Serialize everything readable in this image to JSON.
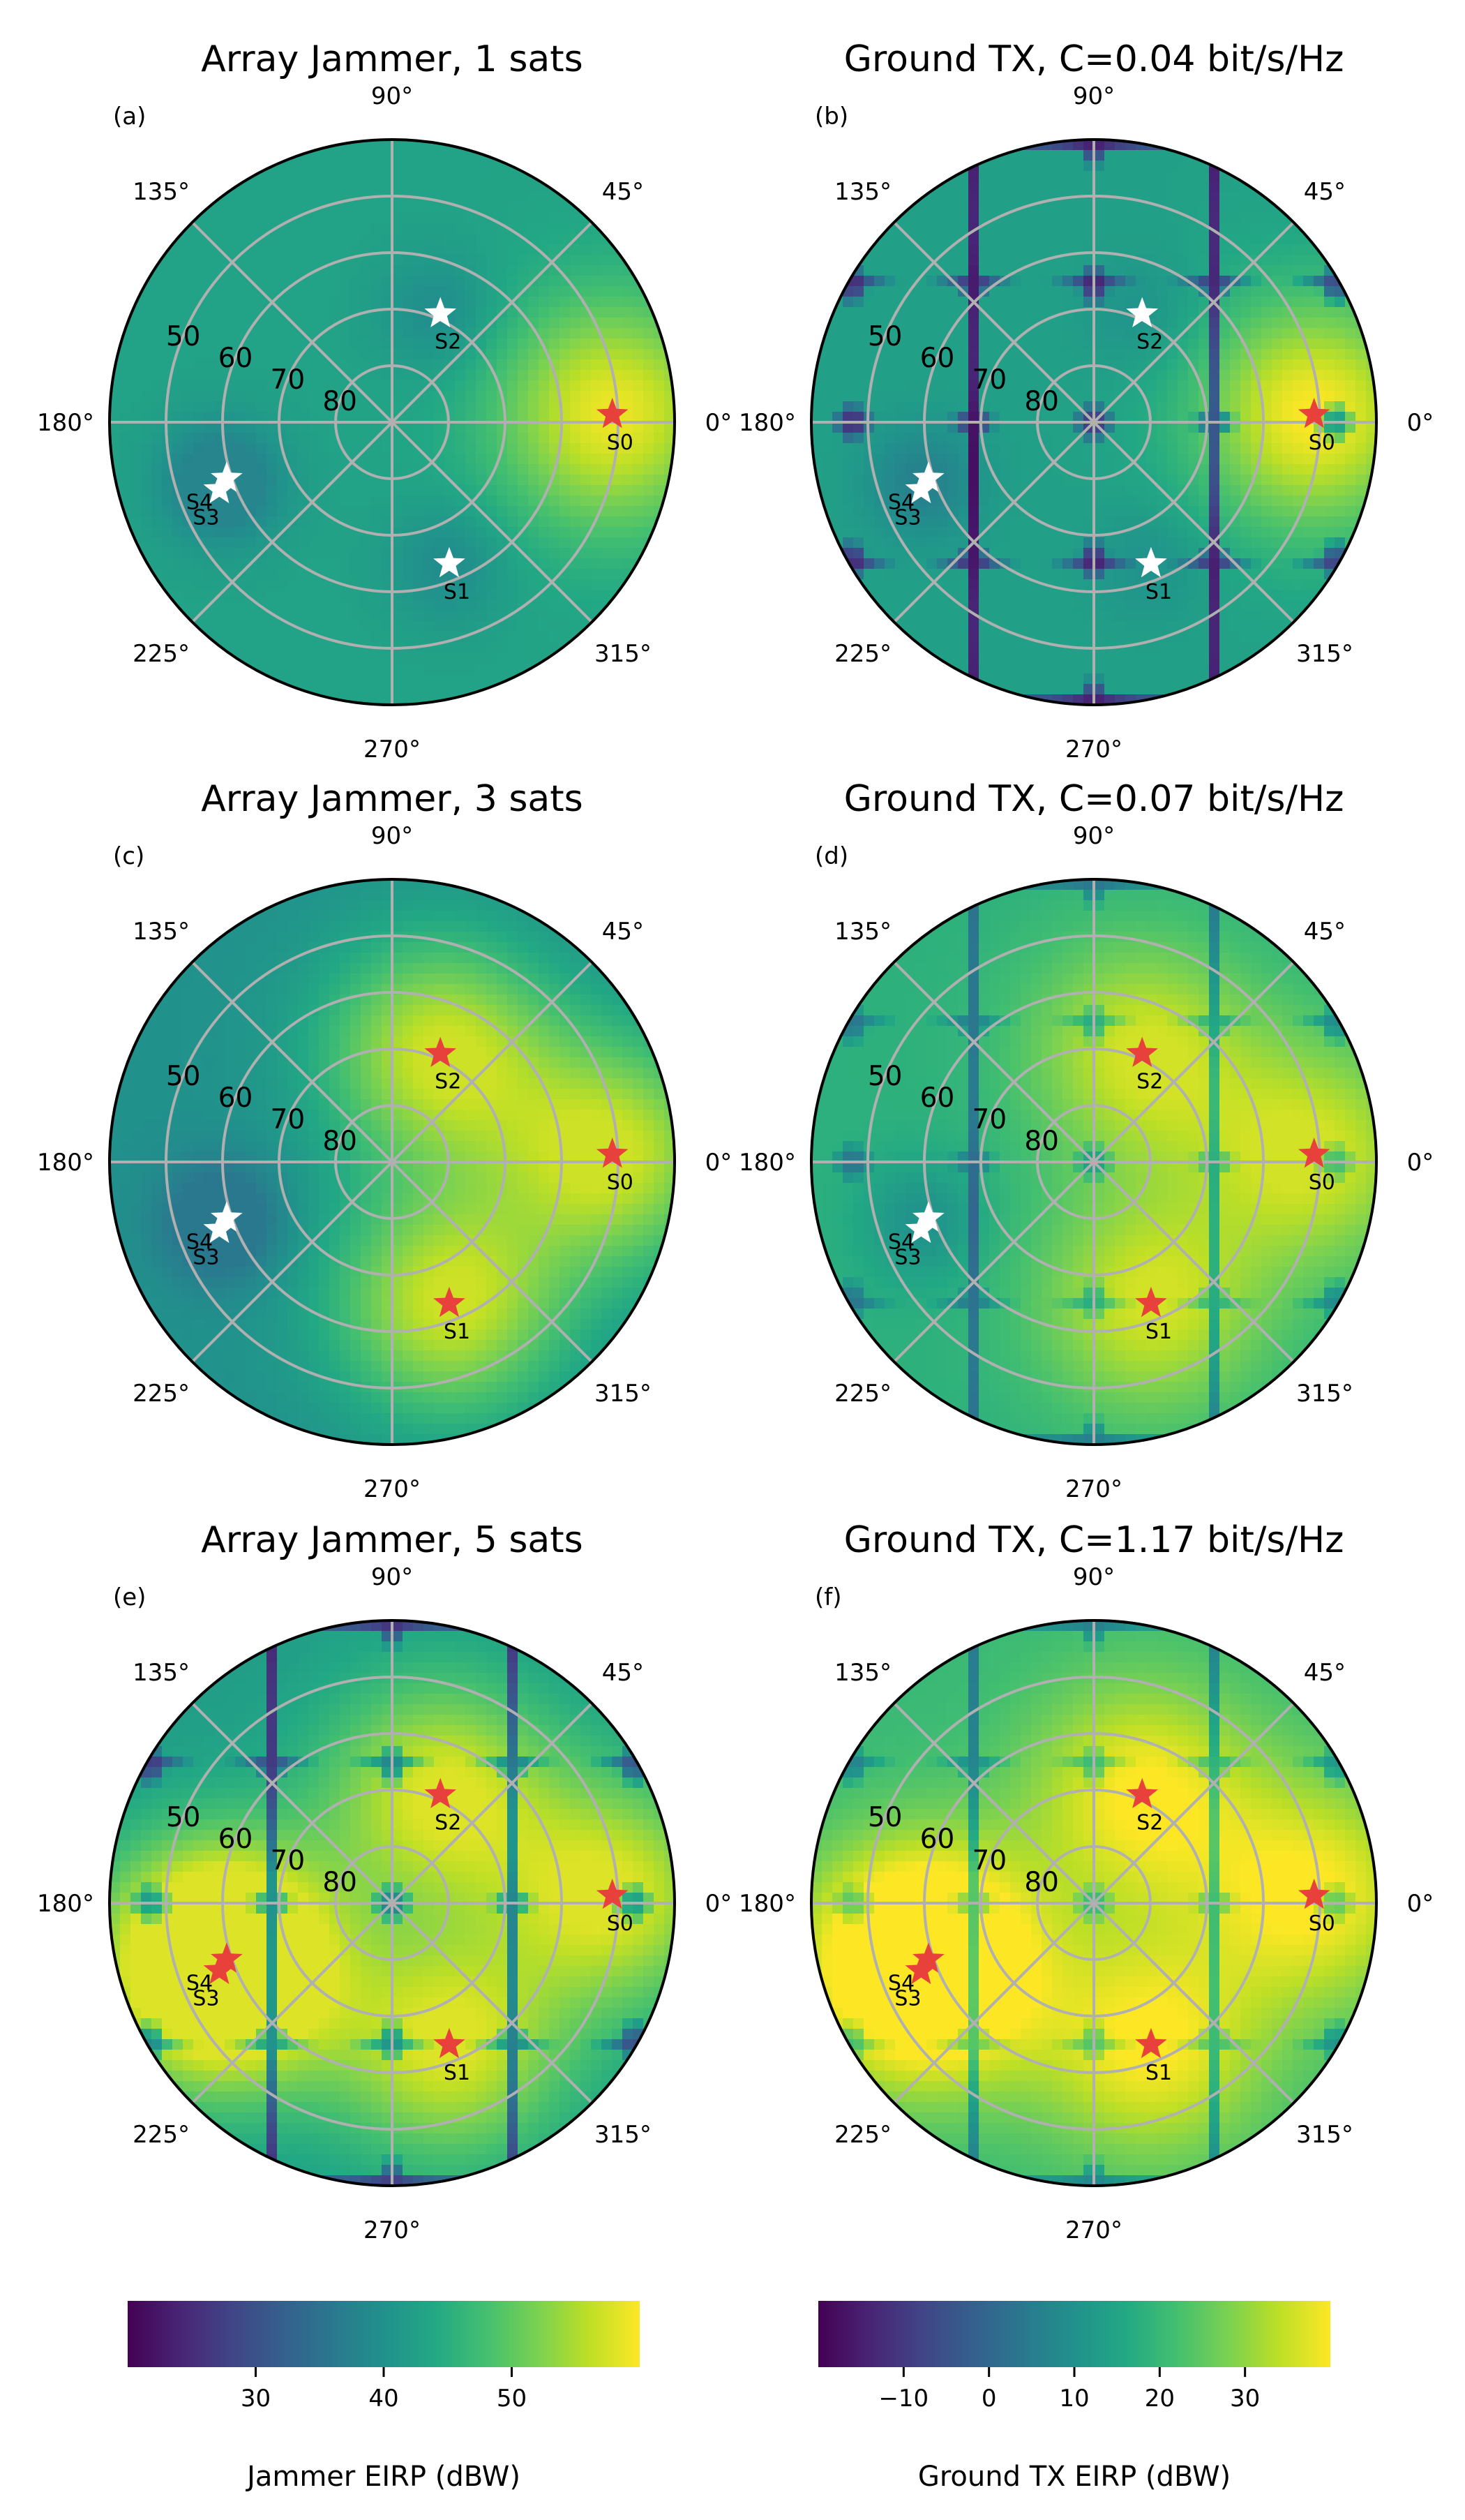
{
  "chart_data": [
    {
      "type": "polar-heatmap",
      "panel_label": "(a)",
      "title": "Array Jammer, 1 sats",
      "colorbar": "jammer",
      "angle_ticks": [
        "0°",
        "45°",
        "90°",
        "135°",
        "180°",
        "225°",
        "270°",
        "315°"
      ],
      "elevation_ticks": [
        "50",
        "60",
        "70",
        "80"
      ],
      "elevation_range": [
        40,
        90
      ],
      "satellites": [
        {
          "name": "S0",
          "azimuth_deg": 2,
          "elevation_deg": 51,
          "targeted": true
        },
        {
          "name": "S1",
          "azimuth_deg": 292,
          "elevation_deg": 63,
          "targeted": false
        },
        {
          "name": "S2",
          "azimuth_deg": 66,
          "elevation_deg": 69,
          "targeted": false
        },
        {
          "name": "S3",
          "azimuth_deg": 200,
          "elevation_deg": 58,
          "targeted": false
        },
        {
          "name": "S4",
          "azimuth_deg": 199,
          "elevation_deg": 58,
          "targeted": false
        }
      ],
      "field": {
        "base_dbw": 43,
        "min_dbw": 38,
        "max_dbw": 59,
        "nulls": false
      }
    },
    {
      "type": "polar-heatmap",
      "panel_label": "(b)",
      "title": "Ground TX, C=0.04 bit/s/Hz",
      "colorbar": "ground",
      "angle_ticks": [
        "0°",
        "45°",
        "90°",
        "135°",
        "180°",
        "225°",
        "270°",
        "315°"
      ],
      "elevation_ticks": [
        "50",
        "60",
        "70",
        "80"
      ],
      "elevation_range": [
        40,
        90
      ],
      "satellites": [
        {
          "name": "S0",
          "azimuth_deg": 2,
          "elevation_deg": 51,
          "targeted": true
        },
        {
          "name": "S1",
          "azimuth_deg": 292,
          "elevation_deg": 63,
          "targeted": false
        },
        {
          "name": "S2",
          "azimuth_deg": 66,
          "elevation_deg": 69,
          "targeted": false
        },
        {
          "name": "S3",
          "azimuth_deg": 200,
          "elevation_deg": 58,
          "targeted": false
        },
        {
          "name": "S4",
          "azimuth_deg": 199,
          "elevation_deg": 58,
          "targeted": false
        }
      ],
      "field": {
        "base_dbw": 14,
        "min_dbw": -19,
        "max_dbw": 40,
        "nulls": true
      }
    },
    {
      "type": "polar-heatmap",
      "panel_label": "(c)",
      "title": "Array Jammer, 3 sats",
      "colorbar": "jammer",
      "angle_ticks": [
        "0°",
        "45°",
        "90°",
        "135°",
        "180°",
        "225°",
        "270°",
        "315°"
      ],
      "elevation_ticks": [
        "50",
        "60",
        "70",
        "80"
      ],
      "elevation_range": [
        40,
        90
      ],
      "satellites": [
        {
          "name": "S0",
          "azimuth_deg": 2,
          "elevation_deg": 51,
          "targeted": true
        },
        {
          "name": "S1",
          "azimuth_deg": 292,
          "elevation_deg": 63,
          "targeted": true
        },
        {
          "name": "S2",
          "azimuth_deg": 66,
          "elevation_deg": 69,
          "targeted": true
        },
        {
          "name": "S3",
          "azimuth_deg": 200,
          "elevation_deg": 58,
          "targeted": false
        },
        {
          "name": "S4",
          "azimuth_deg": 199,
          "elevation_deg": 58,
          "targeted": false
        }
      ],
      "field": {
        "base_dbw": 40,
        "min_dbw": 36,
        "max_dbw": 57,
        "nulls": false
      }
    },
    {
      "type": "polar-heatmap",
      "panel_label": "(d)",
      "title": "Ground TX, C=0.07 bit/s/Hz",
      "colorbar": "ground",
      "angle_ticks": [
        "0°",
        "45°",
        "90°",
        "135°",
        "180°",
        "225°",
        "270°",
        "315°"
      ],
      "elevation_ticks": [
        "50",
        "60",
        "70",
        "80"
      ],
      "elevation_range": [
        40,
        90
      ],
      "satellites": [
        {
          "name": "S0",
          "azimuth_deg": 2,
          "elevation_deg": 51,
          "targeted": true
        },
        {
          "name": "S1",
          "azimuth_deg": 292,
          "elevation_deg": 63,
          "targeted": true
        },
        {
          "name": "S2",
          "azimuth_deg": 66,
          "elevation_deg": 69,
          "targeted": true
        },
        {
          "name": "S3",
          "azimuth_deg": 200,
          "elevation_deg": 58,
          "targeted": false
        },
        {
          "name": "S4",
          "azimuth_deg": 199,
          "elevation_deg": 58,
          "targeted": false
        }
      ],
      "field": {
        "base_dbw": 18,
        "min_dbw": 0,
        "max_dbw": 36,
        "nulls": true
      }
    },
    {
      "type": "polar-heatmap",
      "panel_label": "(e)",
      "title": "Array Jammer, 5 sats",
      "colorbar": "jammer",
      "angle_ticks": [
        "0°",
        "45°",
        "90°",
        "135°",
        "180°",
        "225°",
        "270°",
        "315°"
      ],
      "elevation_ticks": [
        "50",
        "60",
        "70",
        "80"
      ],
      "elevation_range": [
        40,
        90
      ],
      "satellites": [
        {
          "name": "S0",
          "azimuth_deg": 2,
          "elevation_deg": 51,
          "targeted": true
        },
        {
          "name": "S1",
          "azimuth_deg": 292,
          "elevation_deg": 63,
          "targeted": true
        },
        {
          "name": "S2",
          "azimuth_deg": 66,
          "elevation_deg": 69,
          "targeted": true
        },
        {
          "name": "S3",
          "azimuth_deg": 200,
          "elevation_deg": 58,
          "targeted": true
        },
        {
          "name": "S4",
          "azimuth_deg": 199,
          "elevation_deg": 58,
          "targeted": true
        }
      ],
      "field": {
        "base_dbw": 42,
        "min_dbw": 22,
        "max_dbw": 58,
        "nulls": true
      }
    },
    {
      "type": "polar-heatmap",
      "panel_label": "(f)",
      "title": "Ground TX, C=1.17 bit/s/Hz",
      "colorbar": "ground",
      "angle_ticks": [
        "0°",
        "45°",
        "90°",
        "135°",
        "180°",
        "225°",
        "270°",
        "315°"
      ],
      "elevation_ticks": [
        "50",
        "60",
        "70",
        "80"
      ],
      "elevation_range": [
        40,
        90
      ],
      "satellites": [
        {
          "name": "S0",
          "azimuth_deg": 2,
          "elevation_deg": 51,
          "targeted": true
        },
        {
          "name": "S1",
          "azimuth_deg": 292,
          "elevation_deg": 63,
          "targeted": true
        },
        {
          "name": "S2",
          "azimuth_deg": 66,
          "elevation_deg": 69,
          "targeted": true
        },
        {
          "name": "S3",
          "azimuth_deg": 200,
          "elevation_deg": 58,
          "targeted": true
        },
        {
          "name": "S4",
          "azimuth_deg": 199,
          "elevation_deg": 58,
          "targeted": true
        }
      ],
      "field": {
        "base_dbw": 20,
        "min_dbw": 2,
        "max_dbw": 40,
        "nulls": true
      }
    }
  ],
  "colorbars": {
    "jammer": {
      "label": "Jammer EIRP (dBW)",
      "range": [
        20,
        60
      ],
      "ticks": [
        30,
        40,
        50
      ],
      "tick_labels": [
        "30",
        "40",
        "50"
      ]
    },
    "ground": {
      "label": "Ground TX EIRP (dBW)",
      "range": [
        -20,
        40
      ],
      "ticks": [
        -10,
        0,
        10,
        20,
        30
      ],
      "tick_labels": [
        "−10",
        "0",
        "10",
        "20",
        "30"
      ]
    }
  },
  "colors": {
    "targeted_marker": "#e8413c",
    "untargeted_marker": "#ffffff",
    "grid": "#b0b0b0",
    "viridis": [
      "#440154",
      "#482475",
      "#414487",
      "#355f8d",
      "#2a788e",
      "#21918c",
      "#22a884",
      "#44bf70",
      "#7ad151",
      "#bddf26",
      "#fde725"
    ]
  }
}
